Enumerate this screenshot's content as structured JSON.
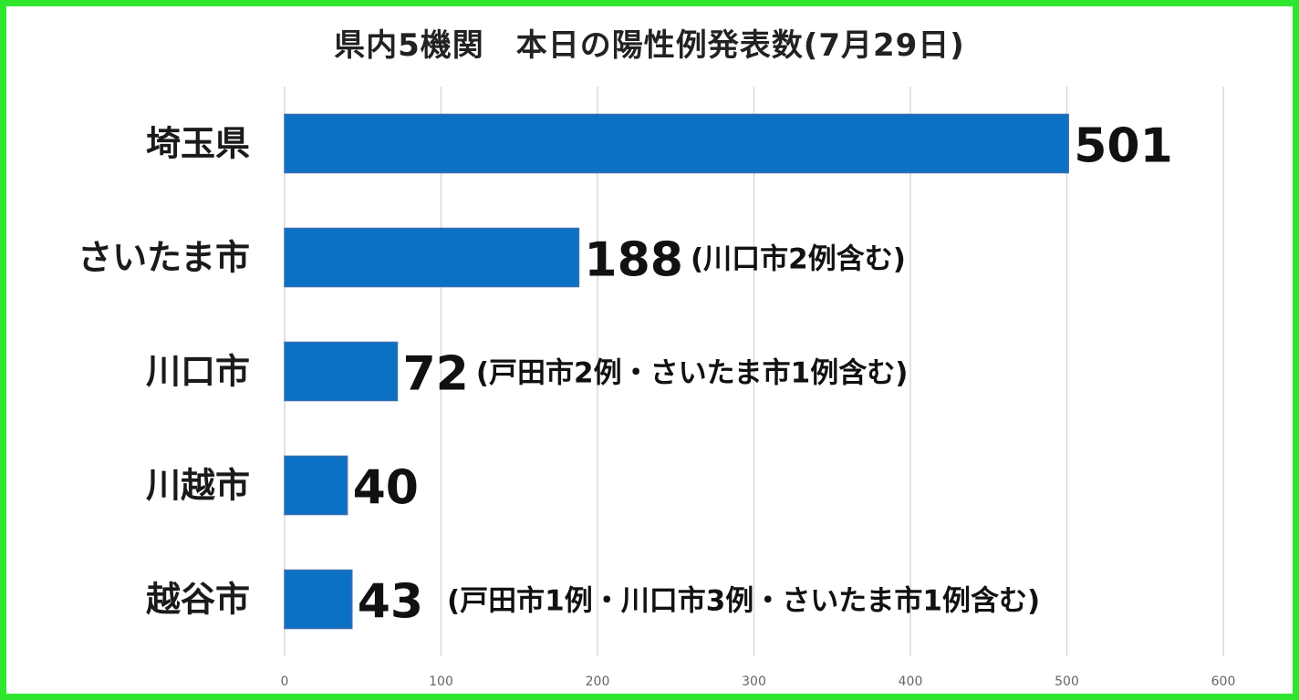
{
  "chart_data": {
    "type": "bar",
    "orientation": "horizontal",
    "title": "県内5機関　本日の陽性例発表数(7月29日)",
    "categories": [
      "埼玉県",
      "さいたま市",
      "川口市",
      "川越市",
      "越谷市"
    ],
    "values": [
      501,
      188,
      72,
      40,
      43
    ],
    "data_labels": [
      "501",
      "188",
      "72",
      "40",
      "43"
    ],
    "annotations": [
      "",
      "(川口市2例含む)",
      "(戸田市2例・さいたま市1例含む)",
      "",
      "(戸田市1例・川口市3例・さいたま市1例含む)"
    ],
    "xlim": [
      0,
      600
    ],
    "x_ticks": [
      "0",
      "100",
      "200",
      "300",
      "400",
      "500",
      "600"
    ],
    "grid": true,
    "legend": "none",
    "colors": {
      "bar": "#0a71c4",
      "bar_border": "#3a6fb0",
      "grid": "#d9d9d9",
      "frame": "#2ee62e"
    }
  }
}
